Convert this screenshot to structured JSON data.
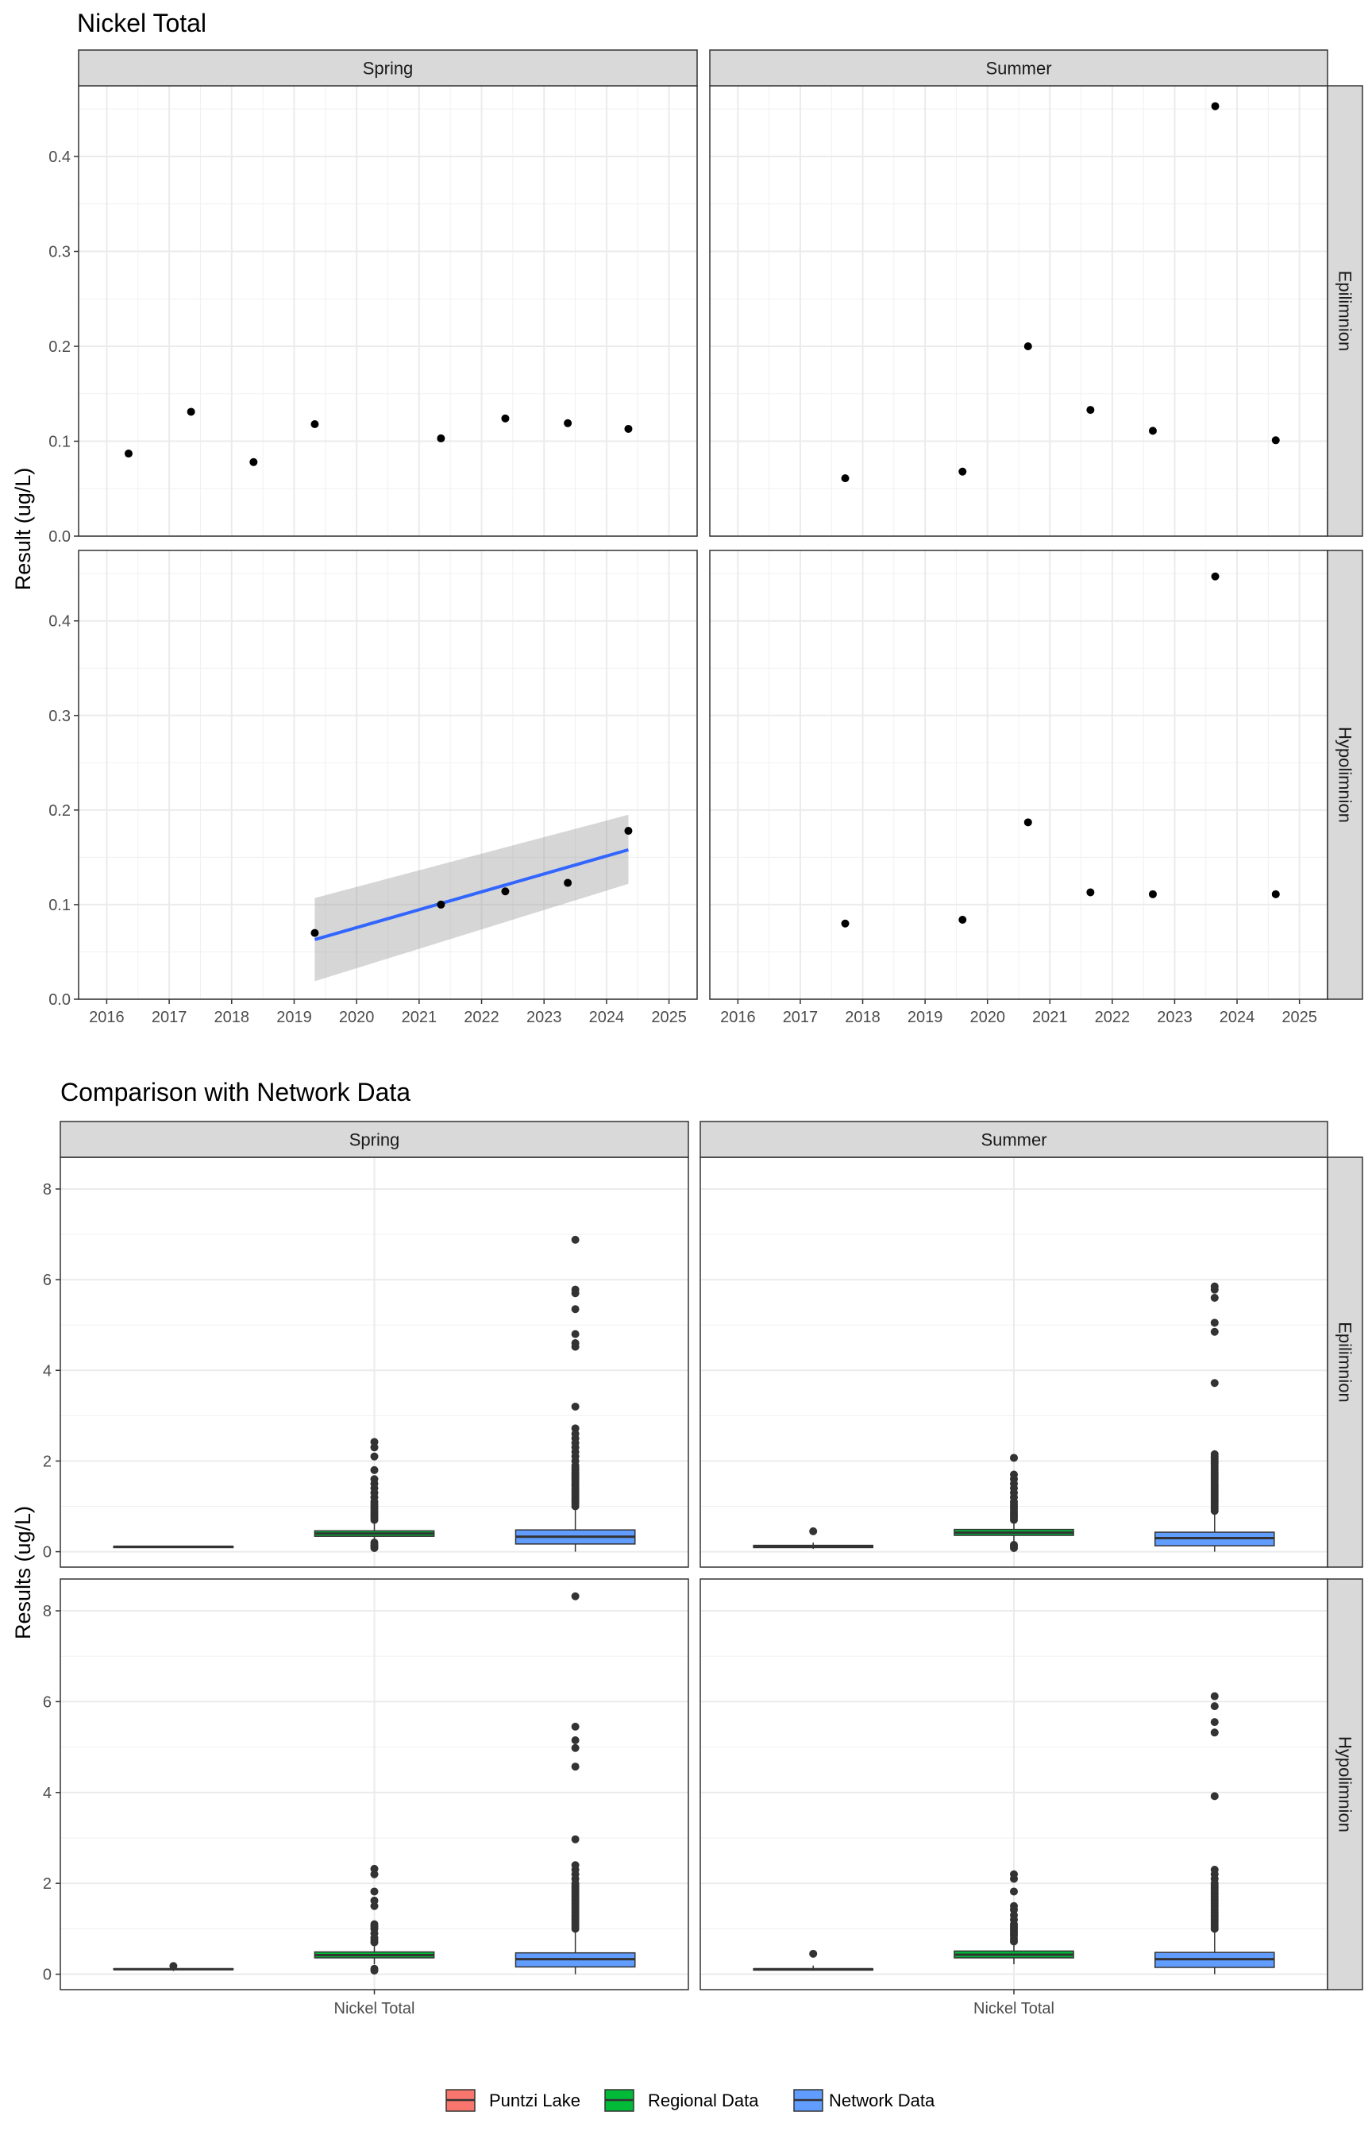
{
  "chart_data": [
    {
      "type": "scatter",
      "title": "Nickel Total",
      "xlabel": "",
      "ylabel": "Result (ug/L)",
      "facet_cols": [
        "Spring",
        "Summer"
      ],
      "facet_rows": [
        "Epilimnion",
        "Hypolimnion"
      ],
      "xlim": [
        2015.55,
        2025.45
      ],
      "x_ticks": [
        2016,
        2017,
        2018,
        2019,
        2020,
        2021,
        2022,
        2023,
        2024,
        2025
      ],
      "ylim": [
        0,
        0.4745
      ],
      "y_ticks": [
        0,
        0.1,
        0.2,
        0.3,
        0.4
      ],
      "y_tick_labels": [
        "0.0",
        "0.1",
        "0.2",
        "0.3",
        "0.4"
      ],
      "grid": true,
      "panels": [
        {
          "season": "Spring",
          "layer": "Epilimnion",
          "points": [
            {
              "x": 2016.35,
              "y": 0.087
            },
            {
              "x": 2017.35,
              "y": 0.131
            },
            {
              "x": 2018.35,
              "y": 0.078
            },
            {
              "x": 2019.33,
              "y": 0.118
            },
            {
              "x": 2021.35,
              "y": 0.103
            },
            {
              "x": 2022.38,
              "y": 0.124
            },
            {
              "x": 2023.38,
              "y": 0.119
            },
            {
              "x": 2024.35,
              "y": 0.113
            }
          ]
        },
        {
          "season": "Summer",
          "layer": "Epilimnion",
          "points": [
            {
              "x": 2017.72,
              "y": 0.061
            },
            {
              "x": 2019.6,
              "y": 0.068
            },
            {
              "x": 2020.65,
              "y": 0.2
            },
            {
              "x": 2021.65,
              "y": 0.133
            },
            {
              "x": 2022.65,
              "y": 0.111
            },
            {
              "x": 2023.65,
              "y": 0.453
            },
            {
              "x": 2024.62,
              "y": 0.101
            }
          ]
        },
        {
          "season": "Spring",
          "layer": "Hypolimnion",
          "points": [
            {
              "x": 2019.33,
              "y": 0.07
            },
            {
              "x": 2021.35,
              "y": 0.1
            },
            {
              "x": 2022.38,
              "y": 0.114
            },
            {
              "x": 2023.38,
              "y": 0.123
            },
            {
              "x": 2024.35,
              "y": 0.178
            }
          ],
          "trend": {
            "x": [
              2019.33,
              2024.35
            ],
            "y": [
              0.063,
              0.158
            ],
            "ci_lower": [
              0.019,
              0.122
            ],
            "ci_upper": [
              0.107,
              0.195
            ]
          }
        },
        {
          "season": "Summer",
          "layer": "Hypolimnion",
          "points": [
            {
              "x": 2017.72,
              "y": 0.08
            },
            {
              "x": 2019.6,
              "y": 0.084
            },
            {
              "x": 2020.65,
              "y": 0.187
            },
            {
              "x": 2021.65,
              "y": 0.113
            },
            {
              "x": 2022.65,
              "y": 0.111
            },
            {
              "x": 2023.65,
              "y": 0.447
            },
            {
              "x": 2024.62,
              "y": 0.111
            }
          ]
        }
      ]
    },
    {
      "type": "box",
      "title": "Comparison with Network Data",
      "xlabel": "",
      "ylabel": "Results (ug/L)",
      "category": "Nickel Total",
      "facet_cols": [
        "Spring",
        "Summer"
      ],
      "facet_rows": [
        "Epilimnion",
        "Hypolimnion"
      ],
      "ylim": [
        -0.34,
        8.7
      ],
      "y_ticks": [
        0,
        2,
        4,
        6,
        8
      ],
      "legend": {
        "position": "bottom"
      },
      "series": [
        {
          "name": "Puntzi Lake",
          "color": "#F8766D"
        },
        {
          "name": "Regional Data",
          "color": "#00BA38"
        },
        {
          "name": "Network Data",
          "color": "#619CFF"
        }
      ],
      "panels": [
        {
          "season": "Spring",
          "layer": "Epilimnion",
          "boxes": [
            {
              "series": "Puntzi Lake",
              "q1": 0.09,
              "median": 0.11,
              "q3": 0.12,
              "whisker_low": 0.08,
              "whisker_high": 0.13,
              "outliers": []
            },
            {
              "series": "Regional Data",
              "q1": 0.34,
              "median": 0.4,
              "q3": 0.46,
              "whisker_low": 0.2,
              "whisker_high": 0.65,
              "outliers": [
                0.08,
                0.12,
                0.15,
                0.2,
                0.7,
                0.75,
                0.8,
                0.85,
                0.9,
                0.95,
                1.0,
                1.05,
                1.1,
                1.2,
                1.3,
                1.4,
                1.5,
                1.6,
                1.8,
                2.1,
                2.3,
                2.42
              ]
            },
            {
              "series": "Network Data",
              "q1": 0.17,
              "median": 0.33,
              "q3": 0.48,
              "whisker_low": 0.0,
              "whisker_high": 0.92,
              "outliers": [
                1.0,
                1.05,
                1.1,
                1.15,
                1.2,
                1.25,
                1.3,
                1.35,
                1.4,
                1.45,
                1.5,
                1.55,
                1.6,
                1.65,
                1.7,
                1.75,
                1.8,
                1.85,
                1.9,
                2.0,
                2.1,
                2.2,
                2.3,
                2.4,
                2.5,
                2.6,
                2.72,
                3.2,
                4.52,
                4.6,
                4.8,
                5.35,
                5.7,
                5.78,
                6.88
              ]
            }
          ]
        },
        {
          "season": "Summer",
          "layer": "Epilimnion",
          "boxes": [
            {
              "series": "Puntzi Lake",
              "q1": 0.09,
              "median": 0.11,
              "q3": 0.14,
              "whisker_low": 0.06,
              "whisker_high": 0.2,
              "outliers": [
                0.45
              ]
            },
            {
              "series": "Regional Data",
              "q1": 0.36,
              "median": 0.42,
              "q3": 0.49,
              "whisker_low": 0.2,
              "whisker_high": 0.66,
              "outliers": [
                0.08,
                0.12,
                0.15,
                0.7,
                0.75,
                0.8,
                0.85,
                0.9,
                0.95,
                1.0,
                1.05,
                1.1,
                1.2,
                1.3,
                1.4,
                1.5,
                1.6,
                1.7,
                2.07
              ]
            },
            {
              "series": "Network Data",
              "q1": 0.13,
              "median": 0.3,
              "q3": 0.43,
              "whisker_low": 0.0,
              "whisker_high": 0.85,
              "outliers": [
                0.9,
                0.95,
                1.0,
                1.05,
                1.1,
                1.15,
                1.2,
                1.25,
                1.3,
                1.35,
                1.4,
                1.45,
                1.5,
                1.55,
                1.6,
                1.65,
                1.7,
                1.75,
                1.8,
                1.85,
                1.9,
                1.95,
                2.0,
                2.05,
                2.1,
                2.15,
                3.72,
                4.85,
                5.05,
                5.6,
                5.78,
                5.85
              ]
            }
          ]
        },
        {
          "season": "Spring",
          "layer": "Hypolimnion",
          "boxes": [
            {
              "series": "Puntzi Lake",
              "q1": 0.1,
              "median": 0.11,
              "q3": 0.12,
              "whisker_low": 0.07,
              "whisker_high": 0.15,
              "outliers": [
                0.18
              ]
            },
            {
              "series": "Regional Data",
              "q1": 0.36,
              "median": 0.42,
              "q3": 0.49,
              "whisker_low": 0.22,
              "whisker_high": 0.66,
              "outliers": [
                0.08,
                0.12,
                0.7,
                0.75,
                0.8,
                0.9,
                1.0,
                1.05,
                1.1,
                1.5,
                1.62,
                1.82,
                2.2,
                2.32
              ]
            },
            {
              "series": "Network Data",
              "q1": 0.16,
              "median": 0.33,
              "q3": 0.47,
              "whisker_low": 0.0,
              "whisker_high": 0.92,
              "outliers": [
                1.0,
                1.05,
                1.1,
                1.15,
                1.2,
                1.25,
                1.3,
                1.35,
                1.4,
                1.45,
                1.5,
                1.55,
                1.6,
                1.65,
                1.7,
                1.75,
                1.8,
                1.85,
                1.9,
                1.95,
                2.0,
                2.1,
                2.2,
                2.3,
                2.4,
                2.97,
                4.57,
                4.98,
                5.15,
                5.45,
                8.32
              ]
            }
          ]
        },
        {
          "season": "Summer",
          "layer": "Hypolimnion",
          "boxes": [
            {
              "series": "Puntzi Lake",
              "q1": 0.09,
              "median": 0.11,
              "q3": 0.12,
              "whisker_low": 0.08,
              "whisker_high": 0.19,
              "outliers": [
                0.45
              ]
            },
            {
              "series": "Regional Data",
              "q1": 0.36,
              "median": 0.43,
              "q3": 0.51,
              "whisker_low": 0.22,
              "whisker_high": 0.68,
              "outliers": [
                0.72,
                0.78,
                0.85,
                0.9,
                0.95,
                1.0,
                1.05,
                1.1,
                1.2,
                1.3,
                1.42,
                1.5,
                1.82,
                2.1,
                2.2
              ]
            },
            {
              "series": "Network Data",
              "q1": 0.15,
              "median": 0.33,
              "q3": 0.48,
              "whisker_low": 0.0,
              "whisker_high": 0.95,
              "outliers": [
                1.0,
                1.05,
                1.1,
                1.15,
                1.2,
                1.25,
                1.3,
                1.35,
                1.4,
                1.45,
                1.5,
                1.55,
                1.6,
                1.65,
                1.7,
                1.75,
                1.8,
                1.85,
                1.9,
                1.95,
                2.0,
                2.1,
                2.2,
                2.3,
                3.92,
                5.32,
                5.55,
                5.9,
                6.12
              ]
            }
          ]
        }
      ]
    }
  ]
}
